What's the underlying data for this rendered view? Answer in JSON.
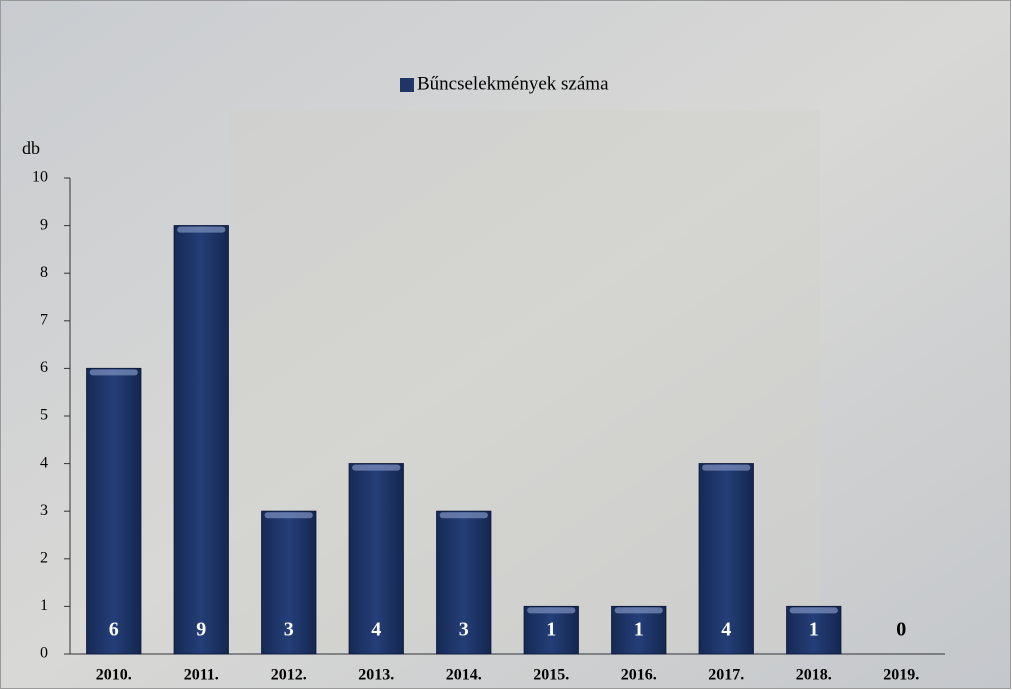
{
  "chart_data": {
    "type": "bar",
    "legend_label": "Bűncselekmények száma",
    "y_label": "db",
    "categories": [
      "2010.",
      "2011.",
      "2012.",
      "2013.",
      "2014.",
      "2015.",
      "2016.",
      "2017.",
      "2018.",
      "2019."
    ],
    "values": [
      6,
      9,
      3,
      4,
      3,
      1,
      1,
      4,
      1,
      0
    ],
    "color": "#1f3566",
    "ylim": [
      0,
      10
    ],
    "yticks": [
      0,
      1,
      2,
      3,
      4,
      5,
      6,
      7,
      8,
      9,
      10
    ],
    "legend": "top"
  }
}
